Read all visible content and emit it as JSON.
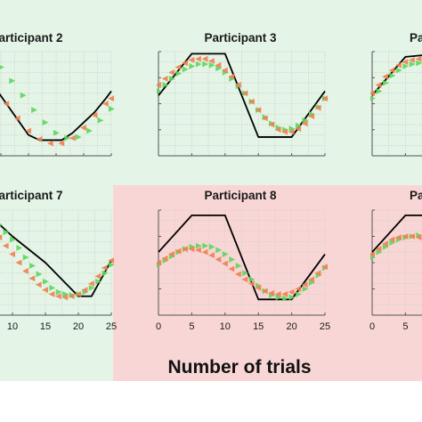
{
  "figure": {
    "xlabel": "Number of trials",
    "background_colors": {
      "good": "#e4f4e6",
      "bad": "#f9d6d6"
    },
    "series_colors": {
      "target": "#000000",
      "green": "#5cd65c",
      "orange": "#f08050"
    },
    "marker_icon": "triangle-marker-icon"
  },
  "chart_data": [
    {
      "type": "scatter",
      "title": "Participant 2",
      "background": "good",
      "xlim": [
        0,
        25
      ],
      "ylim": [
        0,
        1
      ],
      "grid": true,
      "x_ticks": [],
      "series": [
        {
          "style": "line",
          "x": [
            0,
            2,
            4,
            6,
            8,
            10,
            12,
            14,
            16,
            18,
            20,
            22,
            24,
            25
          ],
          "values": [
            0.98,
            0.8,
            0.65,
            0.5,
            0.35,
            0.2,
            0.15,
            0.15,
            0.15,
            0.22,
            0.32,
            0.42,
            0.55,
            0.62
          ]
        },
        {
          "style": "green",
          "x": [
            1,
            3,
            5,
            7,
            9,
            11,
            13,
            15,
            17,
            19,
            21,
            23,
            25
          ],
          "values": [
            0.96,
            0.92,
            0.85,
            0.72,
            0.58,
            0.44,
            0.32,
            0.22,
            0.17,
            0.18,
            0.24,
            0.34,
            0.45
          ]
        },
        {
          "style": "orange",
          "x": [
            0,
            2,
            4,
            6,
            8,
            10,
            12,
            14,
            16,
            18,
            20,
            22,
            24,
            25
          ],
          "values": [
            0.9,
            0.78,
            0.64,
            0.5,
            0.36,
            0.24,
            0.16,
            0.12,
            0.12,
            0.17,
            0.27,
            0.39,
            0.5,
            0.55
          ]
        }
      ]
    },
    {
      "type": "scatter",
      "title": "Participant 3",
      "background": "good",
      "xlim": [
        0,
        25
      ],
      "ylim": [
        0,
        1
      ],
      "grid": true,
      "x_ticks": [],
      "series": [
        {
          "style": "line",
          "x": [
            0,
            5,
            10,
            15,
            20,
            25
          ],
          "values": [
            0.58,
            0.98,
            0.98,
            0.18,
            0.18,
            0.62
          ]
        },
        {
          "style": "green",
          "x": [
            0,
            1,
            2,
            3,
            4,
            5,
            6,
            7,
            8,
            9,
            10,
            11,
            12,
            13,
            14,
            15,
            16,
            17,
            18,
            19,
            20,
            21,
            22,
            23,
            24,
            25
          ],
          "values": [
            0.62,
            0.68,
            0.74,
            0.79,
            0.83,
            0.86,
            0.88,
            0.88,
            0.87,
            0.84,
            0.8,
            0.74,
            0.67,
            0.6,
            0.52,
            0.44,
            0.37,
            0.31,
            0.27,
            0.25,
            0.26,
            0.29,
            0.34,
            0.4,
            0.47,
            0.55
          ]
        },
        {
          "style": "orange",
          "x": [
            0,
            1,
            2,
            3,
            4,
            5,
            6,
            7,
            8,
            9,
            10,
            11,
            12,
            13,
            14,
            15,
            16,
            17,
            18,
            19,
            20,
            21,
            22,
            23,
            24,
            25
          ],
          "values": [
            0.68,
            0.74,
            0.8,
            0.85,
            0.89,
            0.92,
            0.93,
            0.93,
            0.91,
            0.87,
            0.82,
            0.76,
            0.68,
            0.6,
            0.52,
            0.44,
            0.36,
            0.3,
            0.25,
            0.23,
            0.23,
            0.26,
            0.31,
            0.38,
            0.46,
            0.55
          ]
        }
      ]
    },
    {
      "type": "scatter",
      "title": "Pa",
      "background": "good",
      "xlim": [
        0,
        25
      ],
      "ylim": [
        0,
        1
      ],
      "grid": true,
      "x_ticks": [],
      "series": [
        {
          "style": "line",
          "x": [
            0,
            5,
            10
          ],
          "values": [
            0.58,
            0.95,
            0.98
          ]
        },
        {
          "style": "green",
          "x": [
            0,
            1,
            2,
            3,
            4,
            5,
            6,
            7
          ],
          "values": [
            0.55,
            0.62,
            0.7,
            0.77,
            0.82,
            0.86,
            0.88,
            0.89
          ]
        },
        {
          "style": "orange",
          "x": [
            0,
            1,
            2,
            3,
            4,
            5,
            6,
            7
          ],
          "values": [
            0.6,
            0.68,
            0.76,
            0.82,
            0.87,
            0.9,
            0.92,
            0.93
          ]
        }
      ]
    },
    {
      "type": "scatter",
      "title": "Participant 7",
      "background": "good",
      "xlim": [
        0,
        25
      ],
      "ylim": [
        0,
        1
      ],
      "grid": true,
      "x_ticks": [
        {
          "value": 10,
          "label": "10"
        },
        {
          "value": 15,
          "label": "15"
        },
        {
          "value": 20,
          "label": "20"
        },
        {
          "value": 25,
          "label": "25"
        }
      ],
      "series": [
        {
          "style": "line",
          "x": [
            6,
            10,
            15,
            20,
            22,
            25
          ],
          "values": [
            0.98,
            0.75,
            0.5,
            0.18,
            0.18,
            0.52
          ]
        },
        {
          "style": "green",
          "x": [
            6,
            7,
            8,
            9,
            10,
            11,
            12,
            13,
            14,
            15,
            16,
            17,
            18,
            19,
            20,
            21,
            22,
            23,
            24,
            25
          ],
          "values": [
            0.98,
            0.93,
            0.86,
            0.79,
            0.72,
            0.64,
            0.55,
            0.47,
            0.39,
            0.32,
            0.26,
            0.22,
            0.2,
            0.19,
            0.2,
            0.22,
            0.26,
            0.32,
            0.4,
            0.48
          ]
        },
        {
          "style": "orange",
          "x": [
            6,
            7,
            8,
            9,
            10,
            11,
            12,
            13,
            14,
            15,
            16,
            17,
            18,
            19,
            20,
            21,
            22,
            23,
            24,
            25
          ],
          "values": [
            0.9,
            0.82,
            0.74,
            0.66,
            0.58,
            0.5,
            0.42,
            0.35,
            0.29,
            0.24,
            0.2,
            0.18,
            0.17,
            0.18,
            0.2,
            0.24,
            0.3,
            0.37,
            0.45,
            0.52
          ]
        }
      ]
    },
    {
      "type": "scatter",
      "title": "Participant 8",
      "background": "bad",
      "xlim": [
        0,
        25
      ],
      "ylim": [
        0,
        1
      ],
      "grid": true,
      "x_ticks": [
        {
          "value": 0,
          "label": "0"
        },
        {
          "value": 5,
          "label": "5"
        },
        {
          "value": 10,
          "label": "10"
        },
        {
          "value": 15,
          "label": "15"
        },
        {
          "value": 20,
          "label": "20"
        },
        {
          "value": 25,
          "label": "25"
        }
      ],
      "series": [
        {
          "style": "line",
          "x": [
            0,
            5,
            10,
            15,
            20,
            25
          ],
          "values": [
            0.6,
            0.95,
            0.95,
            0.15,
            0.15,
            0.58
          ]
        },
        {
          "style": "green",
          "x": [
            0,
            1,
            2,
            3,
            4,
            5,
            6,
            7,
            8,
            9,
            10,
            11,
            12,
            13,
            14,
            15,
            16,
            17,
            18,
            19,
            20,
            21,
            22,
            23,
            24,
            25
          ],
          "values": [
            0.48,
            0.52,
            0.56,
            0.6,
            0.63,
            0.65,
            0.66,
            0.66,
            0.65,
            0.62,
            0.58,
            0.53,
            0.47,
            0.4,
            0.34,
            0.28,
            0.23,
            0.19,
            0.17,
            0.16,
            0.17,
            0.2,
            0.25,
            0.31,
            0.38,
            0.45
          ]
        },
        {
          "style": "orange",
          "x": [
            0,
            1,
            2,
            3,
            4,
            5,
            6,
            7,
            8,
            9,
            10,
            11,
            12,
            13,
            14,
            15,
            16,
            17,
            18,
            19,
            20,
            21,
            22,
            23,
            24,
            25
          ],
          "values": [
            0.5,
            0.54,
            0.58,
            0.61,
            0.63,
            0.63,
            0.62,
            0.6,
            0.57,
            0.53,
            0.49,
            0.44,
            0.39,
            0.34,
            0.3,
            0.26,
            0.23,
            0.21,
            0.2,
            0.2,
            0.22,
            0.25,
            0.29,
            0.34,
            0.4,
            0.46
          ]
        }
      ]
    },
    {
      "type": "scatter",
      "title": "Pa",
      "background": "bad",
      "xlim": [
        0,
        25
      ],
      "ylim": [
        0,
        1
      ],
      "grid": true,
      "x_ticks": [
        {
          "value": 0,
          "label": "0"
        },
        {
          "value": 5,
          "label": "5"
        }
      ],
      "series": [
        {
          "style": "line",
          "x": [
            0,
            5,
            10
          ],
          "values": [
            0.6,
            0.95,
            0.95
          ]
        },
        {
          "style": "green",
          "x": [
            0,
            1,
            2,
            3,
            4,
            5,
            6,
            7
          ],
          "values": [
            0.55,
            0.6,
            0.65,
            0.69,
            0.72,
            0.74,
            0.75,
            0.76
          ]
        },
        {
          "style": "orange",
          "x": [
            0,
            1,
            2,
            3,
            4,
            5,
            6,
            7
          ],
          "values": [
            0.58,
            0.63,
            0.68,
            0.72,
            0.74,
            0.75,
            0.75,
            0.74
          ]
        }
      ]
    }
  ]
}
